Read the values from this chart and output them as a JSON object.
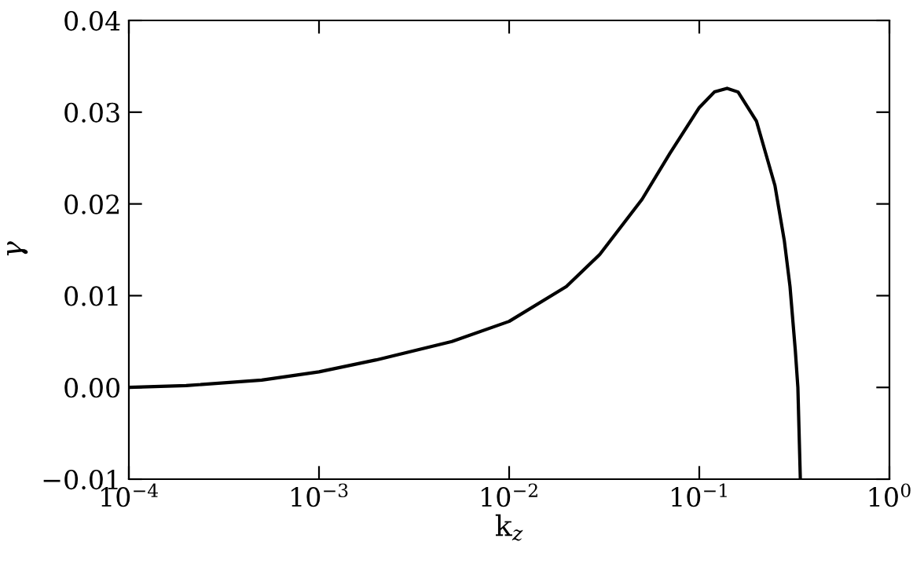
{
  "chart_data": {
    "type": "line",
    "xlabel": "k$_{z}$",
    "ylabel": "γ",
    "log": "x",
    "x": [
      0.0001,
      0.0002,
      0.0005,
      0.001,
      0.002,
      0.005,
      0.01,
      0.02,
      0.03,
      0.05,
      0.07,
      0.1,
      0.12,
      0.14,
      0.16,
      0.2,
      0.25,
      0.28,
      0.3,
      0.32,
      0.33,
      0.34
    ],
    "series": [
      {
        "color": "#000000",
        "values": [
          0.0,
          0.0002,
          0.0008,
          0.0017,
          0.003,
          0.005,
          0.0072,
          0.011,
          0.0145,
          0.0205,
          0.0255,
          0.0305,
          0.0322,
          0.0326,
          0.0322,
          0.029,
          0.022,
          0.016,
          0.011,
          0.004,
          0.0,
          -0.01
        ]
      }
    ],
    "xlim": [
      0.0001,
      1
    ],
    "ylim": [
      -0.01,
      0.04
    ],
    "xticks": [
      {
        "value": 0.0001,
        "label": "10$^{−4}$"
      },
      {
        "value": 0.001,
        "label": "10$^{−3}$"
      },
      {
        "value": 0.01,
        "label": "10$^{−2}$"
      },
      {
        "value": 0.1,
        "label": "10$^{−1}$"
      },
      {
        "value": 1,
        "label": "10$^{0}$"
      }
    ],
    "yticks": [
      {
        "value": -0.01,
        "label": "−0.01"
      },
      {
        "value": 0.0,
        "label": "0.00"
      },
      {
        "value": 0.01,
        "label": "0.01"
      },
      {
        "value": 0.02,
        "label": "0.02"
      },
      {
        "value": 0.03,
        "label": "0.03"
      },
      {
        "value": 0.04,
        "label": "0.04"
      }
    ],
    "grid": false,
    "marker": "none",
    "line_style": "solid"
  }
}
